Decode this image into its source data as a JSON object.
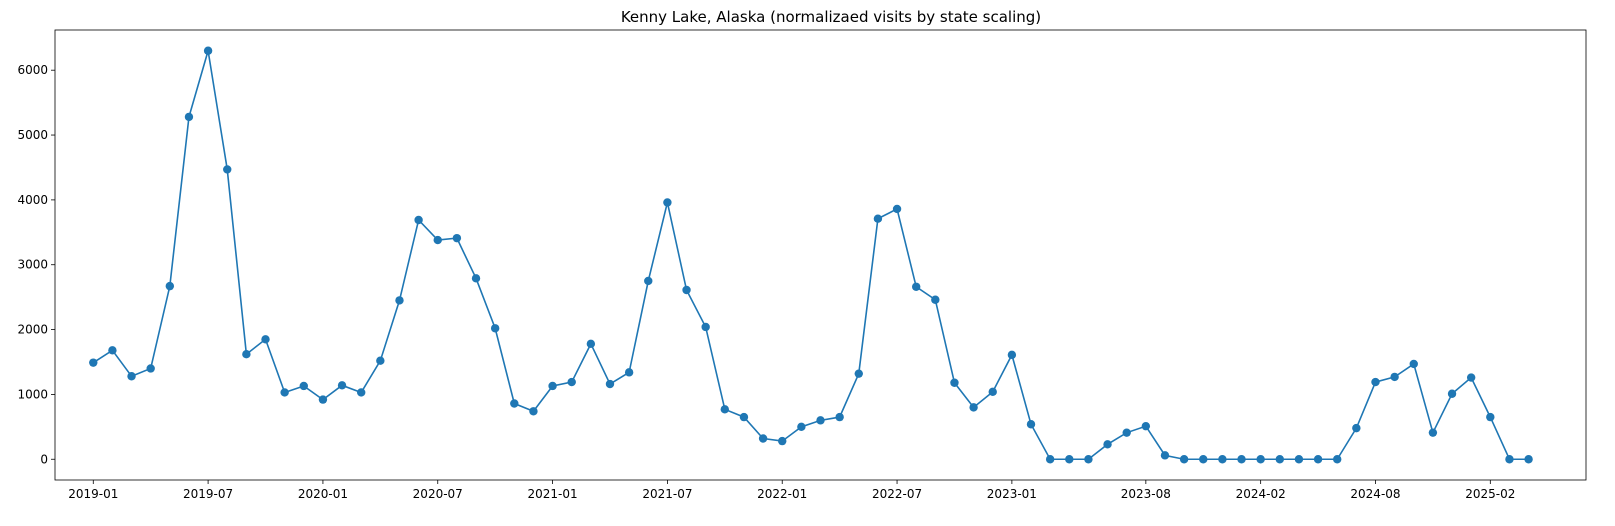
{
  "chart_data": {
    "type": "line",
    "title": "Kenny Lake, Alaska (normalizaed visits by state scaling)",
    "xlabel": "",
    "ylabel": "",
    "x_tick_labels": [
      "2019-01",
      "2019-07",
      "2020-01",
      "2020-07",
      "2021-01",
      "2021-07",
      "2022-01",
      "2022-07",
      "2023-01",
      "2023-08",
      "2024-02",
      "2024-08",
      "2025-02"
    ],
    "y_tick_labels": [
      "0",
      "1000",
      "2000",
      "3000",
      "4000",
      "5000",
      "6000"
    ],
    "y_ticks": [
      0,
      1000,
      2000,
      3000,
      4000,
      5000,
      6000
    ],
    "ylim": [
      -320,
      6620
    ],
    "xlim": [
      "2018-11-01",
      "2025-07-01"
    ],
    "grid": false,
    "legend": "none",
    "color": "#1f77b4",
    "series": [
      {
        "x": [
          "2019-01",
          "2019-02",
          "2019-03",
          "2019-04",
          "2019-05",
          "2019-06",
          "2019-07",
          "2019-08",
          "2019-09",
          "2019-10",
          "2019-11",
          "2019-12",
          "2020-01",
          "2020-02",
          "2020-03",
          "2020-04",
          "2020-05",
          "2020-06",
          "2020-07",
          "2020-08",
          "2020-09",
          "2020-10",
          "2020-11",
          "2020-12",
          "2021-01",
          "2021-02",
          "2021-03",
          "2021-04",
          "2021-05",
          "2021-06",
          "2021-07",
          "2021-08",
          "2021-09",
          "2021-10",
          "2021-11",
          "2021-12",
          "2022-01",
          "2022-02",
          "2022-03",
          "2022-04",
          "2022-05",
          "2022-06",
          "2022-07",
          "2022-08",
          "2022-09",
          "2022-10",
          "2022-11",
          "2022-12",
          "2023-01",
          "2023-02",
          "2023-03",
          "2023-04",
          "2023-05",
          "2023-06",
          "2023-07",
          "2023-08",
          "2023-09",
          "2023-10",
          "2023-11",
          "2023-12",
          "2024-01",
          "2024-02",
          "2024-03",
          "2024-04",
          "2024-05",
          "2024-06",
          "2024-07",
          "2024-08",
          "2024-09",
          "2024-10",
          "2024-11",
          "2024-12",
          "2025-01",
          "2025-02",
          "2025-03",
          "2025-04"
        ],
        "y": [
          1490,
          1680,
          1280,
          1400,
          2670,
          5280,
          6300,
          4470,
          1620,
          1850,
          1030,
          1130,
          920,
          1140,
          1030,
          1520,
          2450,
          3690,
          3380,
          3410,
          2790,
          2020,
          860,
          740,
          1130,
          1190,
          1780,
          1160,
          1340,
          2750,
          3960,
          2610,
          2040,
          770,
          650,
          320,
          280,
          500,
          600,
          650,
          1320,
          3710,
          3860,
          2660,
          2460,
          1180,
          800,
          1040,
          1610,
          540,
          0,
          0,
          0,
          230,
          410,
          510,
          60,
          0,
          0,
          0,
          0,
          0,
          0,
          0,
          0,
          0,
          480,
          1190,
          1270,
          1470,
          410,
          1010,
          1260,
          650,
          0,
          0
        ]
      }
    ]
  }
}
